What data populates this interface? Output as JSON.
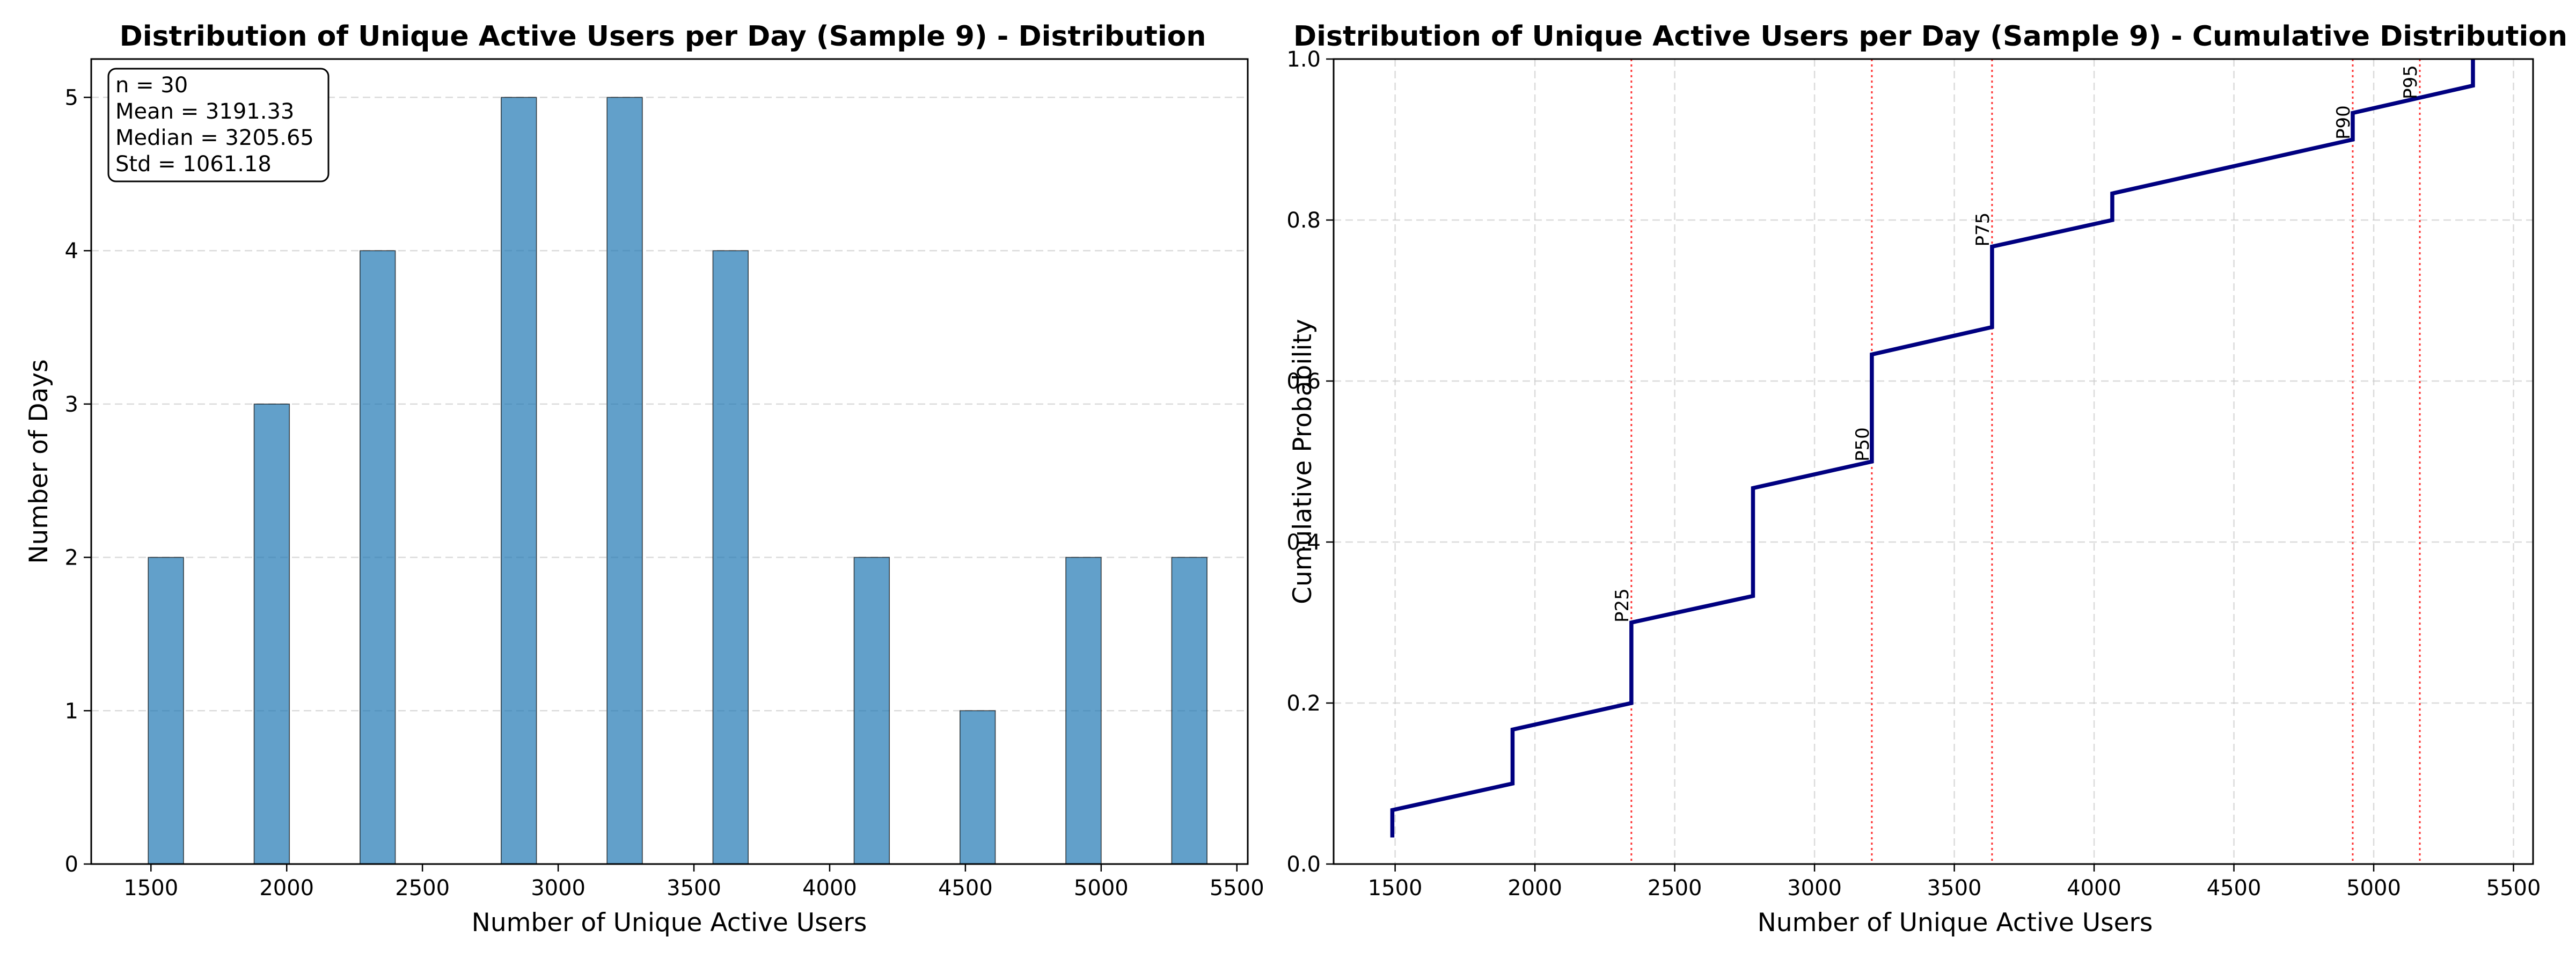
{
  "chart_data": [
    {
      "type": "bar",
      "title": "Distribution of Unique Active Users per Day (Sample 9) - Distribution",
      "xlabel": "Number of Unique Active Users",
      "ylabel": "Number of Days",
      "xlim": [
        1280,
        5540
      ],
      "ylim": [
        0,
        5.25
      ],
      "xticks": [
        1500,
        2000,
        2500,
        3000,
        3500,
        4000,
        4500,
        5000,
        5500
      ],
      "yticks": [
        0,
        1,
        2,
        3,
        4,
        5
      ],
      "bin_width": 130,
      "bars": [
        {
          "x": 1555,
          "count": 2
        },
        {
          "x": 1945,
          "count": 3
        },
        {
          "x": 2335,
          "count": 4
        },
        {
          "x": 2855,
          "count": 5
        },
        {
          "x": 3245,
          "count": 5
        },
        {
          "x": 3635,
          "count": 4
        },
        {
          "x": 4155,
          "count": 2
        },
        {
          "x": 4545,
          "count": 1
        },
        {
          "x": 4935,
          "count": 2
        },
        {
          "x": 5325,
          "count": 2
        }
      ],
      "grid": true,
      "stats_box": [
        "n = 30",
        "Mean = 3191.33",
        "Median = 3205.65",
        "Std = 1061.18"
      ],
      "stats_box_placement": "top-left"
    },
    {
      "type": "line",
      "title": "Distribution of Unique Active Users per Day (Sample 9) - Cumulative Distribution",
      "xlabel": "Number of Unique Active Users",
      "ylabel": "Cumulative Probability",
      "xlim": [
        1280,
        5570
      ],
      "ylim": [
        0,
        1.0
      ],
      "xticks": [
        1500,
        2000,
        2500,
        3000,
        3500,
        4000,
        4500,
        5000,
        5500
      ],
      "yticks": [
        0.0,
        0.2,
        0.4,
        0.6,
        0.8,
        1.0
      ],
      "steps": [
        {
          "x": 1490,
          "y0": 0.033,
          "y1": 0.067
        },
        {
          "x": 1920,
          "y0": 0.1,
          "y1": 0.167
        },
        {
          "x": 2345,
          "y0": 0.2,
          "y1": 0.3
        },
        {
          "x": 2780,
          "y0": 0.333,
          "y1": 0.467
        },
        {
          "x": 3205,
          "y0": 0.5,
          "y1": 0.633
        },
        {
          "x": 3635,
          "y0": 0.667,
          "y1": 0.767
        },
        {
          "x": 4065,
          "y0": 0.8,
          "y1": 0.833
        },
        {
          "x": 4925,
          "y0": 0.9,
          "y1": 0.933
        },
        {
          "x": 5355,
          "y0": 0.967,
          "y1": 1.0
        }
      ],
      "percentiles": [
        {
          "label": "P25",
          "x": 2345,
          "label_y": 0.3
        },
        {
          "label": "P50",
          "x": 3205,
          "label_y": 0.5
        },
        {
          "label": "P75",
          "x": 3635,
          "label_y": 0.767
        },
        {
          "label": "P90",
          "x": 4925,
          "label_y": 0.9
        },
        {
          "label": "P95",
          "x": 5165,
          "label_y": 0.95
        }
      ],
      "grid": true
    }
  ]
}
